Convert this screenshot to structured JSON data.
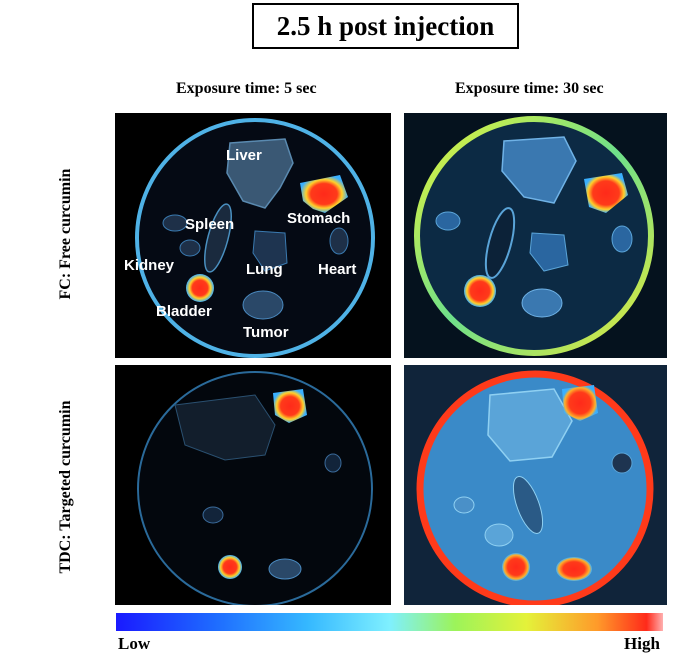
{
  "title": "2.5 h post injection",
  "columns": {
    "exposure_5": "Exposure time: 5 sec",
    "exposure_30": "Exposure time: 30 sec"
  },
  "rows": {
    "fc": "FC: Free curcumin",
    "tdc": "TDC: Targeted curcumin"
  },
  "organs": {
    "liver": "Liver",
    "spleen": "Spleen",
    "stomach": "Stomach",
    "kidney": "Kidney",
    "lung": "Lung",
    "heart": "Heart",
    "bladder": "Bladder",
    "tumor": "Tumor"
  },
  "colorbar": {
    "low_label": "Low",
    "high_label": "High",
    "colors": [
      "#1a1aff",
      "#35b8ff",
      "#7ff0ff",
      "#9cf35a",
      "#e4f23a",
      "#ff9a2a",
      "#ff2a1a"
    ]
  }
}
